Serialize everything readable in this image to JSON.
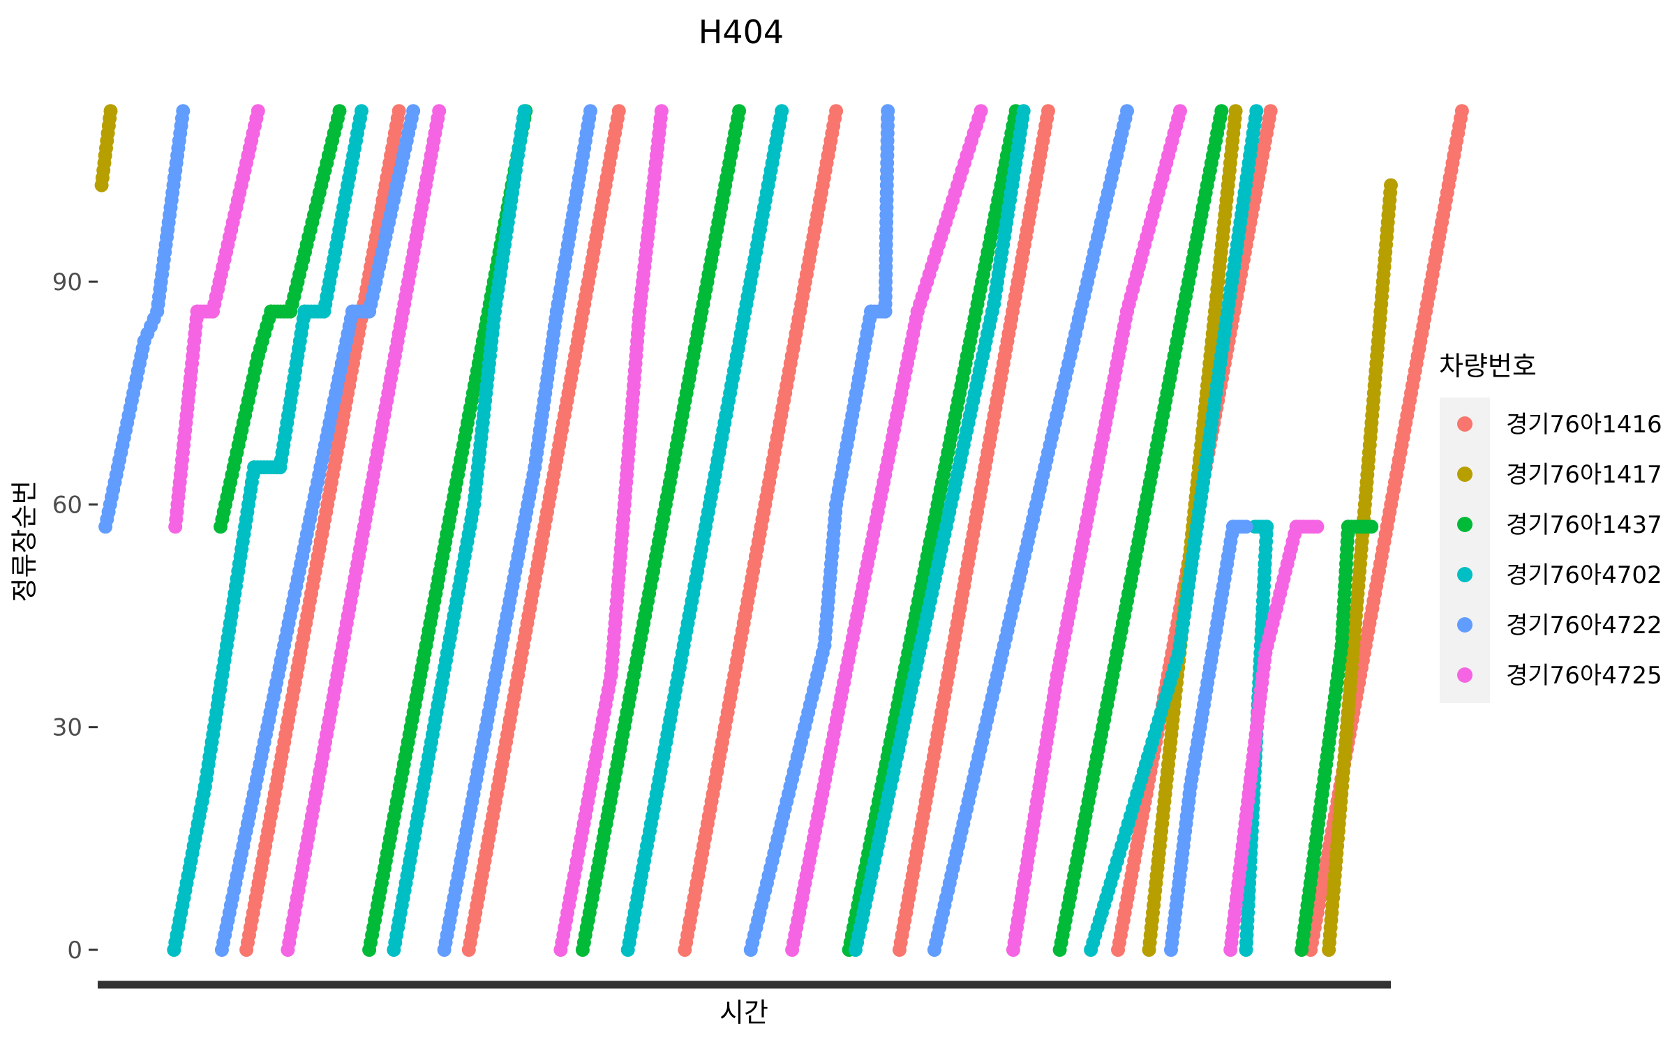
{
  "chart_data": {
    "type": "scatter",
    "title": "H404",
    "xlabel": "시간",
    "ylabel": "정류장순번",
    "ylim": [
      -4,
      116
    ],
    "yticks": [
      0,
      30,
      60,
      90
    ],
    "x_axis": "time (tick labels not shown)",
    "grid": false,
    "legend_title": "차량번호",
    "legend_position": "right",
    "series": [
      {
        "name": "경기76아1416",
        "color": "#F8766D",
        "trips": [
          [
            [
              0.115,
              0
            ],
            [
              0.233,
              113
            ]
          ],
          [
            [
              0.287,
              0
            ],
            [
              0.403,
              113
            ]
          ],
          [
            [
              0.454,
              0
            ],
            [
              0.571,
              113
            ]
          ],
          [
            [
              0.62,
              0
            ],
            [
              0.735,
              113
            ]
          ],
          [
            [
              0.789,
              0
            ],
            [
              0.907,
              113
            ]
          ],
          [
            [
              0.938,
              0
            ],
            [
              1.055,
              113
            ]
          ]
        ]
      },
      {
        "name": "경기76아1417",
        "color": "#B79F00",
        "trips": [
          [
            [
              0.003,
              103
            ],
            [
              0.01,
              113
            ]
          ],
          [
            [
              0.813,
              0
            ],
            [
              0.88,
              113
            ]
          ],
          [
            [
              0.952,
              0
            ],
            [
              1.0,
              103
            ]
          ]
        ]
      },
      {
        "name": "경기76아1437",
        "color": "#00BA38",
        "trips": [
          [
            [
              0.095,
              57
            ],
            [
              0.124,
              80
            ],
            [
              0.134,
              86
            ],
            [
              0.149,
              86
            ],
            [
              0.187,
              113
            ]
          ],
          [
            [
              0.21,
              0
            ],
            [
              0.331,
              113
            ]
          ],
          [
            [
              0.375,
              0
            ],
            [
              0.496,
              113
            ]
          ],
          [
            [
              0.581,
              0
            ],
            [
              0.71,
              113
            ]
          ],
          [
            [
              0.744,
              0
            ],
            [
              0.869,
              113
            ]
          ],
          [
            [
              0.931,
              0
            ],
            [
              0.962,
              41
            ],
            [
              0.967,
              57
            ],
            [
              0.985,
              57
            ]
          ]
        ]
      },
      {
        "name": "경기76아4702",
        "color": "#00BFC4",
        "trips": [
          [
            [
              0.059,
              0
            ],
            [
              0.083,
              22
            ],
            [
              0.121,
              65
            ],
            [
              0.141,
              65
            ],
            [
              0.16,
              86
            ],
            [
              0.175,
              86
            ],
            [
              0.204,
              113
            ]
          ],
          [
            [
              0.229,
              0
            ],
            [
              0.291,
              60
            ],
            [
              0.307,
              86
            ],
            [
              0.33,
              113
            ]
          ],
          [
            [
              0.41,
              0
            ],
            [
              0.529,
              113
            ]
          ],
          [
            [
              0.586,
              0
            ],
            [
              0.693,
              87
            ],
            [
              0.716,
              113
            ]
          ],
          [
            [
              0.768,
              0
            ],
            [
              0.836,
              40
            ],
            [
              0.896,
              113
            ]
          ],
          [
            [
              0.888,
              0
            ],
            [
              0.904,
              57
            ],
            [
              0.895,
              57
            ]
          ]
        ]
      },
      {
        "name": "경기76아4722",
        "color": "#619CFF",
        "trips": [
          [
            [
              0.006,
              57
            ],
            [
              0.036,
              82
            ],
            [
              0.046,
              86
            ],
            [
              0.066,
              113
            ]
          ],
          [
            [
              0.096,
              0
            ],
            [
              0.197,
              86
            ],
            [
              0.21,
              86
            ],
            [
              0.244,
              113
            ]
          ],
          [
            [
              0.268,
              0
            ],
            [
              0.338,
              65
            ],
            [
              0.355,
              86
            ],
            [
              0.381,
              113
            ]
          ],
          [
            [
              0.505,
              0
            ],
            [
              0.562,
              41
            ],
            [
              0.571,
              60
            ],
            [
              0.598,
              86
            ],
            [
              0.609,
              86
            ],
            [
              0.611,
              113
            ]
          ],
          [
            [
              0.647,
              0
            ],
            [
              0.76,
              86
            ],
            [
              0.796,
              113
            ]
          ],
          [
            [
              0.83,
              0
            ],
            [
              0.845,
              22
            ],
            [
              0.878,
              57
            ],
            [
              0.888,
              57
            ]
          ]
        ]
      },
      {
        "name": "경기76아4725",
        "color": "#F564E3",
        "trips": [
          [
            [
              0.06,
              57
            ],
            [
              0.077,
              86
            ],
            [
              0.089,
              86
            ],
            [
              0.124,
              113
            ]
          ],
          [
            [
              0.147,
              0
            ],
            [
              0.264,
              113
            ]
          ],
          [
            [
              0.358,
              0
            ],
            [
              0.397,
              37
            ],
            [
              0.419,
              86
            ],
            [
              0.436,
              113
            ]
          ],
          [
            [
              0.537,
              0
            ],
            [
              0.577,
              36
            ],
            [
              0.634,
              86
            ],
            [
              0.683,
              113
            ]
          ],
          [
            [
              0.708,
              0
            ],
            [
              0.742,
              37
            ],
            [
              0.796,
              86
            ],
            [
              0.837,
              113
            ]
          ],
          [
            [
              0.876,
              0
            ],
            [
              0.903,
              40
            ],
            [
              0.927,
              57
            ],
            [
              0.943,
              57
            ]
          ]
        ]
      }
    ]
  }
}
